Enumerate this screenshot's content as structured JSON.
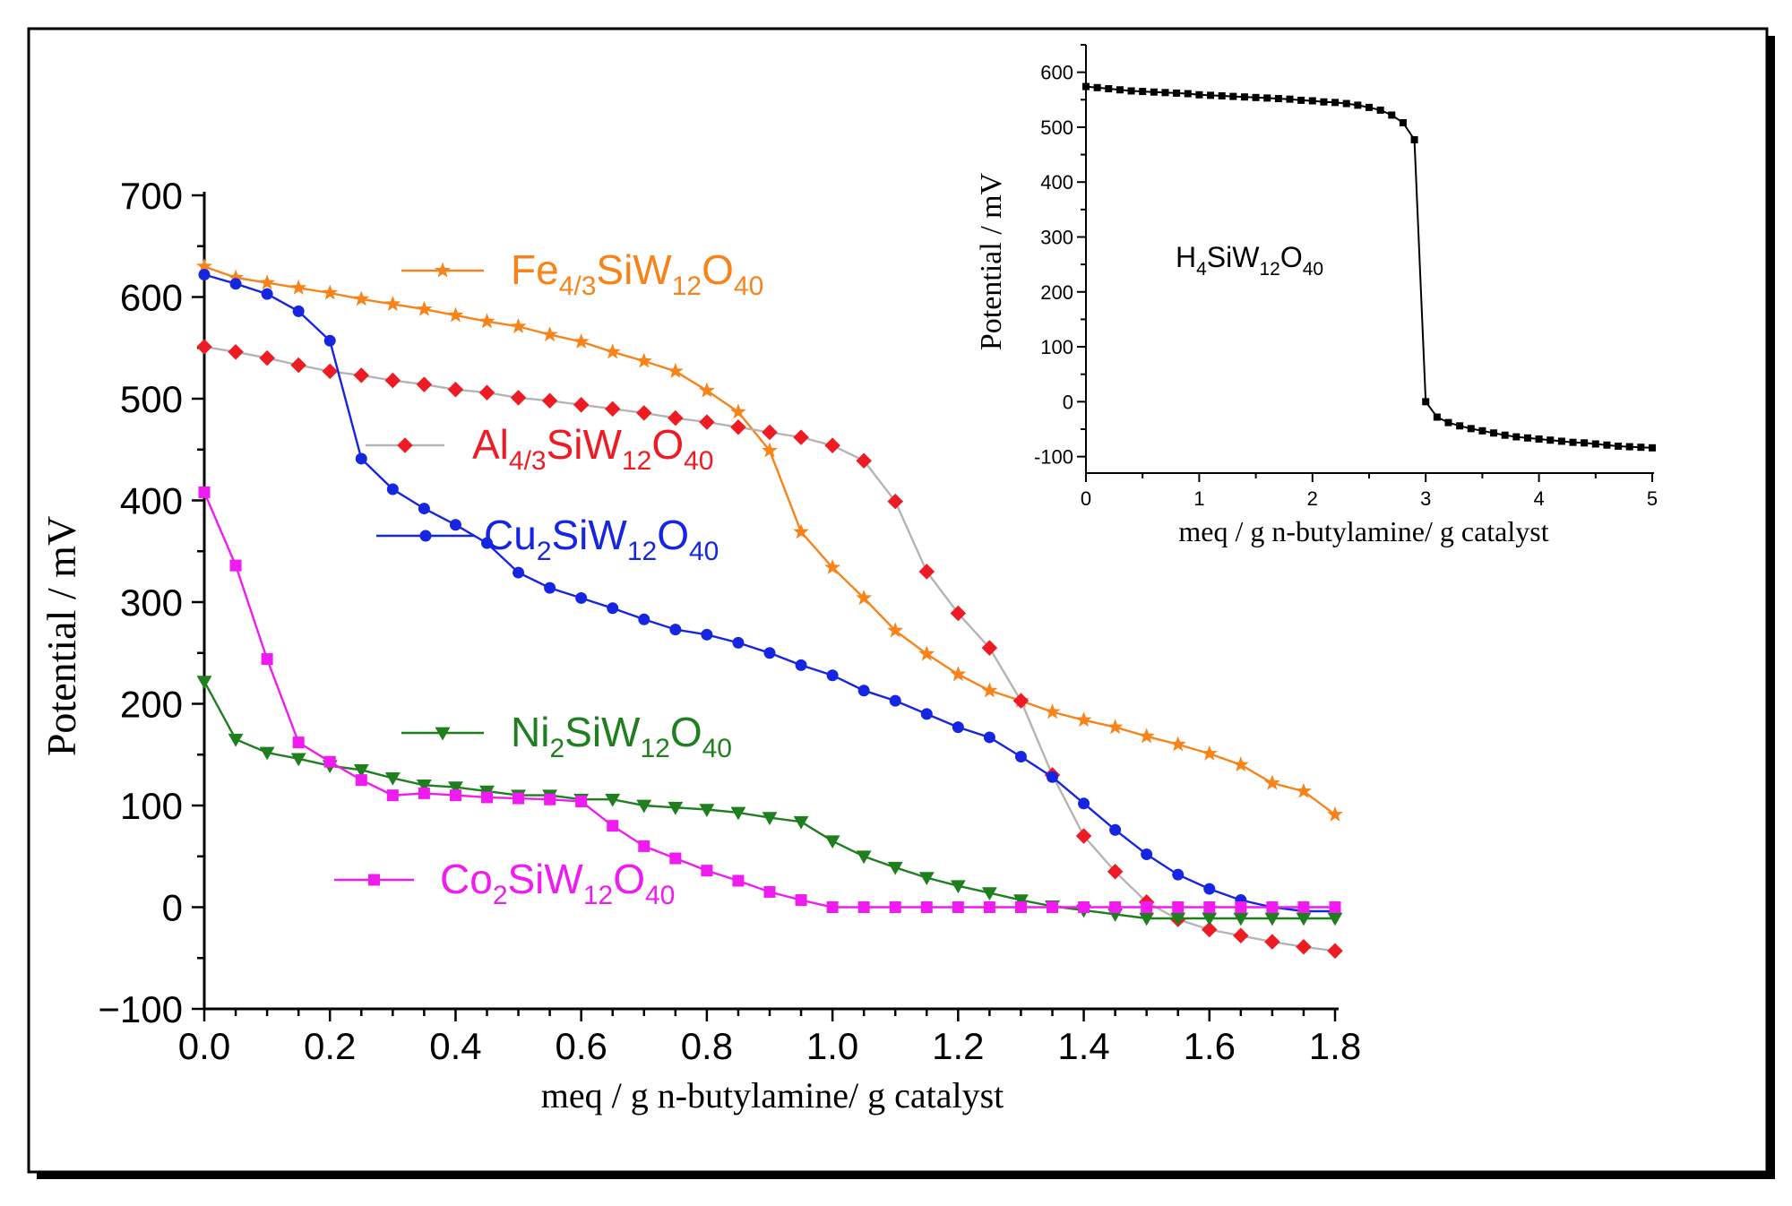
{
  "chart_data": [
    {
      "type": "line",
      "title": "",
      "xlabel": "meq / g n-butylamine/ g catalyst",
      "ylabel": "Potential / mV",
      "xlim": [
        0,
        1.8
      ],
      "ylim": [
        -100,
        700
      ],
      "x_ticks": [
        "0.0",
        "0.2",
        "0.4",
        "0.6",
        "0.8",
        "1.0",
        "1.2",
        "1.4",
        "1.6",
        "1.8"
      ],
      "y_ticks": [
        "−100",
        "0",
        "100",
        "200",
        "300",
        "400",
        "500",
        "600",
        "700"
      ],
      "grid": false,
      "series": [
        {
          "name": "Fe4/3SiW12O40",
          "label_main": "Fe",
          "label_sub1": "4/3",
          "label_mid": "SiW",
          "label_sub2": "12",
          "label_end": "O",
          "label_sub3": "40",
          "color": "#f7841b",
          "line_color": "#f7841b",
          "marker": "star",
          "x": [
            0,
            0.05,
            0.1,
            0.15,
            0.2,
            0.25,
            0.3,
            0.35,
            0.4,
            0.45,
            0.5,
            0.55,
            0.6,
            0.65,
            0.7,
            0.75,
            0.8,
            0.85,
            0.9,
            0.95,
            1.0,
            1.05,
            1.1,
            1.15,
            1.2,
            1.25,
            1.3,
            1.35,
            1.4,
            1.45,
            1.5,
            1.55,
            1.6,
            1.65,
            1.7,
            1.75,
            1.8
          ],
          "values": [
            630,
            619,
            614,
            609,
            604,
            598,
            593,
            588,
            582,
            576,
            571,
            563,
            556,
            546,
            537,
            527,
            508,
            487,
            449,
            369,
            334,
            304,
            272,
            249,
            229,
            213,
            203,
            192,
            184,
            177,
            168,
            160,
            151,
            140,
            122,
            114,
            91
          ]
        },
        {
          "name": "Al4/3SiW12O40",
          "label_main": "Al",
          "label_sub1": "4/3",
          "label_mid": "SiW",
          "label_sub2": "12",
          "label_end": "O",
          "label_sub3": "40",
          "color": "#ed1c24",
          "line_color": "#b4b4b4",
          "marker": "diamond",
          "x": [
            0,
            0.05,
            0.1,
            0.15,
            0.2,
            0.25,
            0.3,
            0.35,
            0.4,
            0.45,
            0.5,
            0.55,
            0.6,
            0.65,
            0.7,
            0.75,
            0.8,
            0.85,
            0.9,
            0.95,
            1.0,
            1.05,
            1.1,
            1.15,
            1.2,
            1.25,
            1.3,
            1.35,
            1.4,
            1.45,
            1.5,
            1.55,
            1.6,
            1.65,
            1.7,
            1.75,
            1.8
          ],
          "values": [
            551,
            546,
            540,
            533,
            527,
            523,
            518,
            514,
            509,
            506,
            501,
            498,
            494,
            490,
            486,
            481,
            477,
            472,
            467,
            462,
            454,
            439,
            399,
            330,
            289,
            255,
            203,
            130,
            70,
            35,
            5,
            -12,
            -22,
            -28,
            -34,
            -39,
            -43
          ]
        },
        {
          "name": "Cu2SiW12O40",
          "label_main": "Cu",
          "label_sub1": "2",
          "label_mid": "SiW",
          "label_sub2": "12",
          "label_end": "O",
          "label_sub3": "40",
          "color": "#1626e0",
          "line_color": "#1626e0",
          "marker": "circle",
          "x": [
            0,
            0.05,
            0.1,
            0.15,
            0.2,
            0.25,
            0.3,
            0.35,
            0.4,
            0.45,
            0.5,
            0.55,
            0.6,
            0.65,
            0.7,
            0.75,
            0.8,
            0.85,
            0.9,
            0.95,
            1.0,
            1.05,
            1.1,
            1.15,
            1.2,
            1.25,
            1.3,
            1.35,
            1.4,
            1.45,
            1.5,
            1.55,
            1.6,
            1.65,
            1.7,
            1.75,
            1.8
          ],
          "values": [
            622,
            613,
            603,
            586,
            557,
            441,
            411,
            392,
            376,
            358,
            329,
            314,
            304,
            294,
            283,
            273,
            268,
            260,
            250,
            238,
            228,
            213,
            203,
            190,
            177,
            167,
            148,
            128,
            102,
            76,
            52,
            32,
            18,
            7,
            0,
            -4,
            -4
          ]
        },
        {
          "name": "Ni2SiW12O40",
          "label_main": "Ni",
          "label_sub1": "2",
          "label_mid": "SiW",
          "label_sub2": "12",
          "label_end": "O",
          "label_sub3": "40",
          "color": "#1f7f1f",
          "line_color": "#1f7f1f",
          "marker": "triangle-down",
          "x": [
            0,
            0.05,
            0.1,
            0.15,
            0.2,
            0.25,
            0.3,
            0.35,
            0.4,
            0.45,
            0.5,
            0.55,
            0.6,
            0.65,
            0.7,
            0.75,
            0.8,
            0.85,
            0.9,
            0.95,
            1.0,
            1.05,
            1.1,
            1.15,
            1.2,
            1.25,
            1.3,
            1.35,
            1.4,
            1.45,
            1.5,
            1.55,
            1.6,
            1.65,
            1.7,
            1.75,
            1.8
          ],
          "values": [
            222,
            165,
            152,
            146,
            139,
            135,
            127,
            120,
            118,
            114,
            110,
            110,
            106,
            106,
            100,
            98,
            96,
            93,
            88,
            84,
            65,
            50,
            39,
            29,
            21,
            14,
            7,
            1,
            -3,
            -7,
            -11,
            -11,
            -11,
            -11,
            -11,
            -11,
            -11
          ]
        },
        {
          "name": "Co2SiW12O40",
          "label_main": "Co",
          "label_sub1": "2",
          "label_mid": "SiW",
          "label_sub2": "12",
          "label_end": "O",
          "label_sub3": "40",
          "color": "#f01bf0",
          "line_color": "#f01bf0",
          "marker": "square",
          "x": [
            0,
            0.05,
            0.1,
            0.15,
            0.2,
            0.25,
            0.3,
            0.35,
            0.4,
            0.45,
            0.5,
            0.55,
            0.6,
            0.65,
            0.7,
            0.75,
            0.8,
            0.85,
            0.9,
            0.95,
            1.0,
            1.05,
            1.1,
            1.15,
            1.2,
            1.25,
            1.3,
            1.35,
            1.4,
            1.45,
            1.5,
            1.55,
            1.6,
            1.65,
            1.7,
            1.75,
            1.8
          ],
          "values": [
            408,
            336,
            244,
            162,
            143,
            125,
            110,
            112,
            110,
            108,
            107,
            106,
            104,
            80,
            60,
            48,
            36,
            26,
            15,
            7,
            0,
            0,
            0,
            0,
            0,
            0,
            0,
            0,
            0,
            0,
            0,
            0,
            0,
            0,
            0,
            0,
            0
          ]
        }
      ]
    },
    {
      "type": "line",
      "title": "",
      "annotation_main": "H",
      "annotation_sub1": "4",
      "annotation_mid": "SiW",
      "annotation_sub2": "12",
      "annotation_end": "O",
      "annotation_sub3": "40",
      "xlabel": "meq / g n-butylamine/ g catalyst",
      "ylabel": "Potential / mV",
      "xlim": [
        0,
        5
      ],
      "ylim": [
        -130,
        650
      ],
      "x_ticks": [
        "0",
        "1",
        "2",
        "3",
        "4",
        "5"
      ],
      "y_ticks": [
        "-100",
        "0",
        "100",
        "200",
        "300",
        "400",
        "500",
        "600"
      ],
      "grid": false,
      "series": [
        {
          "name": "H4SiW12O40",
          "color": "#000000",
          "marker": "square",
          "x": [
            0,
            0.1,
            0.2,
            0.3,
            0.4,
            0.5,
            0.6,
            0.7,
            0.8,
            0.9,
            1.0,
            1.1,
            1.2,
            1.3,
            1.4,
            1.5,
            1.6,
            1.7,
            1.8,
            1.9,
            2.0,
            2.1,
            2.2,
            2.3,
            2.4,
            2.5,
            2.6,
            2.7,
            2.8,
            2.9,
            3.0,
            3.1,
            3.2,
            3.3,
            3.4,
            3.5,
            3.6,
            3.7,
            3.8,
            3.9,
            4.0,
            4.1,
            4.2,
            4.3,
            4.4,
            4.5,
            4.6,
            4.7,
            4.8,
            4.9,
            5.0
          ],
          "values": [
            574,
            572,
            570,
            568,
            566,
            565,
            564,
            563,
            562,
            561,
            559,
            558,
            557,
            556,
            555,
            554,
            553,
            552,
            551,
            549,
            548,
            546,
            545,
            543,
            540,
            536,
            531,
            522,
            508,
            477,
            0,
            -28,
            -38,
            -44,
            -49,
            -53,
            -57,
            -61,
            -64,
            -66,
            -68,
            -70,
            -72,
            -74,
            -75,
            -77,
            -79,
            -81,
            -82,
            -83,
            -84
          ]
        }
      ]
    }
  ]
}
